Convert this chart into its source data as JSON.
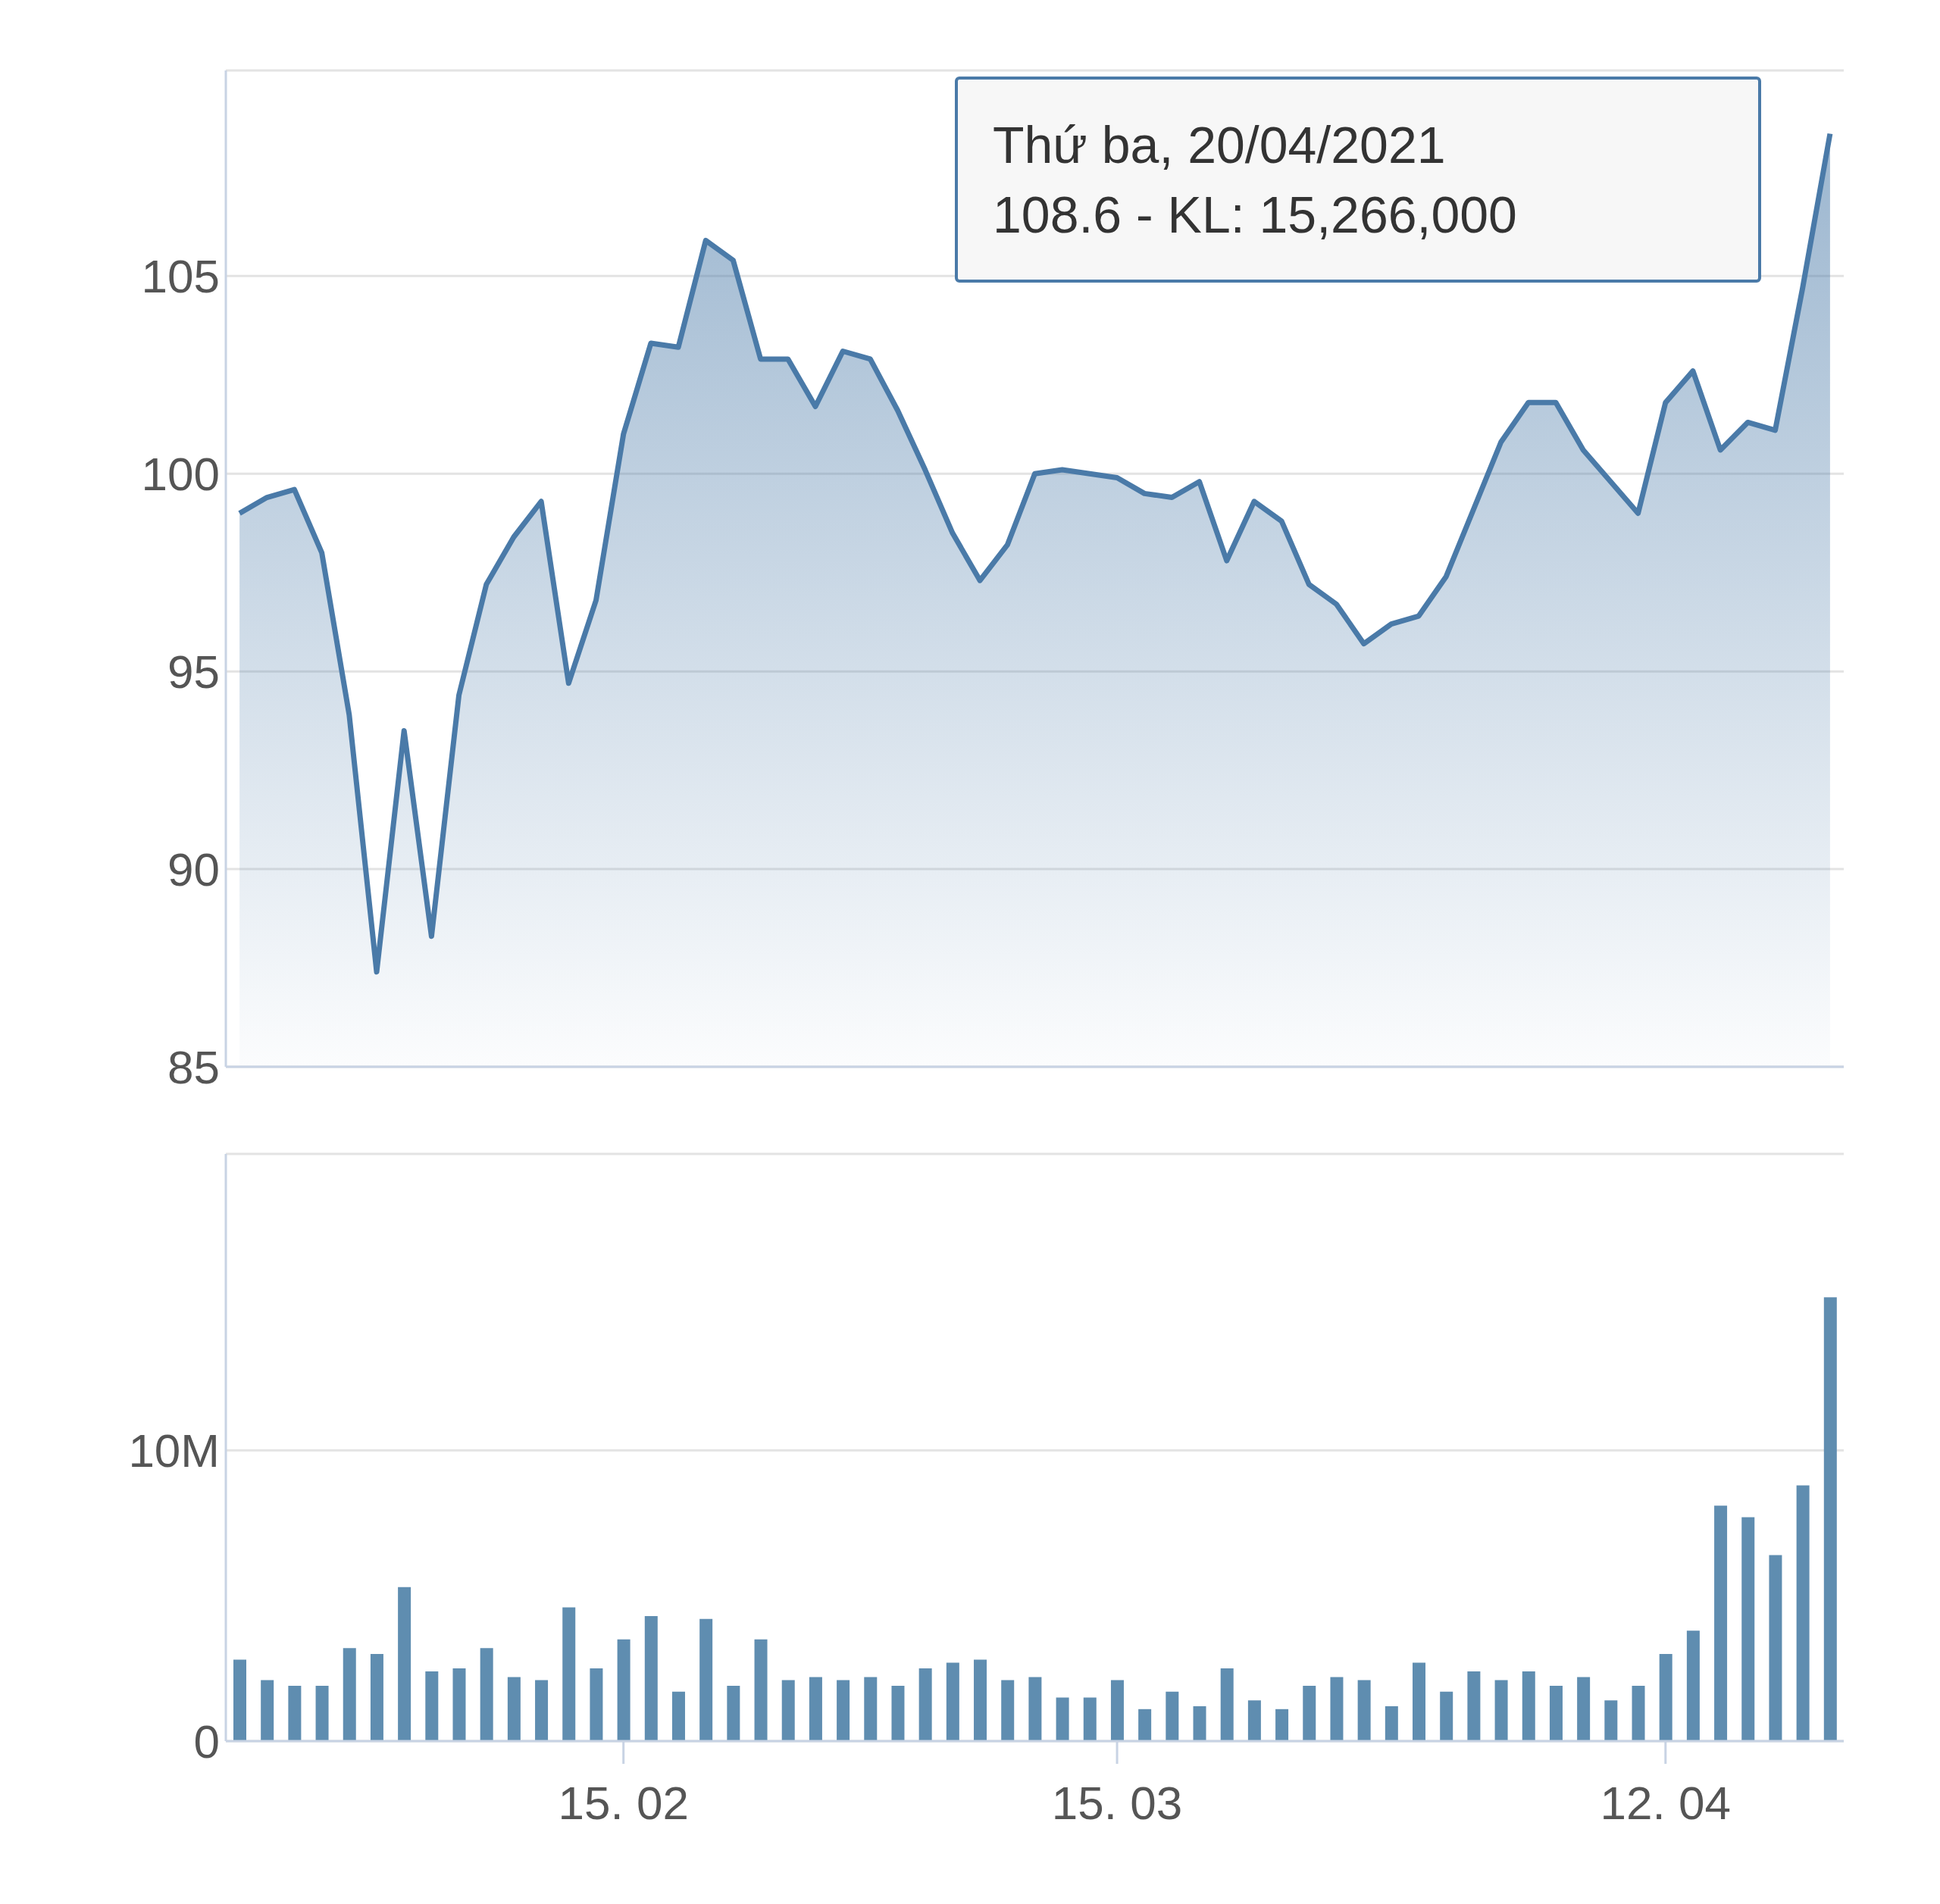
{
  "chart_data": [
    {
      "type": "area",
      "categories": [
        null,
        null,
        null,
        null,
        null,
        null,
        null,
        null,
        null,
        null,
        null,
        null,
        null,
        null,
        null,
        null,
        null,
        null,
        null,
        null,
        null,
        null,
        null,
        null,
        null,
        null,
        null,
        null,
        null,
        null,
        null,
        null,
        null,
        null,
        null,
        null,
        null,
        null,
        null,
        null,
        null,
        null,
        null,
        null,
        null,
        null,
        null,
        null,
        null,
        null,
        null,
        null,
        null,
        null,
        null,
        null,
        null,
        null,
        null
      ],
      "series": [
        {
          "color": "#4a7aa8",
          "values": [
            99.0,
            99.4,
            99.6,
            98.0,
            93.9,
            87.4,
            93.5,
            88.3,
            94.4,
            97.2,
            98.4,
            99.3,
            94.7,
            96.8,
            101.0,
            103.3,
            103.2,
            105.9,
            105.4,
            102.9,
            102.9,
            101.7,
            103.1,
            102.9,
            101.6,
            100.1,
            98.5,
            97.3,
            98.2,
            100.0,
            100.1,
            100.0,
            99.9,
            99.5,
            99.4,
            99.8,
            97.8,
            99.3,
            98.8,
            97.2,
            96.7,
            95.7,
            96.2,
            96.4,
            97.4,
            99.1,
            100.8,
            101.8,
            101.8,
            100.6,
            99.8,
            99.0,
            101.8,
            102.6,
            100.6,
            101.3,
            101.1,
            104.7,
            108.6
          ]
        }
      ],
      "ylim": [
        85,
        110.2
      ],
      "yticks": [
        85,
        90,
        95,
        100,
        105
      ],
      "grid": "y",
      "tick_labels": "y",
      "marker": "none",
      "annotations": [
        "Thứ ba, 20/04/2021",
        "108.6 - KL: 15,266,000"
      ]
    },
    {
      "type": "bar",
      "categories": [
        null,
        null,
        null,
        null,
        null,
        null,
        null,
        null,
        null,
        null,
        null,
        null,
        null,
        null,
        "15. 02",
        null,
        null,
        null,
        null,
        null,
        null,
        null,
        null,
        null,
        null,
        null,
        null,
        null,
        null,
        null,
        null,
        null,
        "15. 03",
        null,
        null,
        null,
        null,
        null,
        null,
        null,
        null,
        null,
        null,
        null,
        null,
        null,
        null,
        null,
        null,
        null,
        null,
        null,
        "12. 04",
        null,
        null,
        null,
        null,
        null,
        null
      ],
      "series": [
        {
          "color": "#5f8db0",
          "values": [
            2800000,
            2100000,
            1900000,
            1900000,
            3200000,
            3000000,
            5300000,
            2400000,
            2500000,
            3200000,
            2200000,
            2100000,
            4600000,
            2500000,
            3500000,
            4300000,
            1700000,
            4200000,
            1900000,
            3500000,
            2100000,
            2200000,
            2100000,
            2200000,
            1900000,
            2500000,
            2700000,
            2800000,
            2100000,
            2200000,
            1500000,
            1500000,
            2100000,
            1100000,
            1700000,
            1200000,
            2500000,
            1400000,
            1100000,
            1900000,
            2200000,
            2100000,
            1200000,
            2700000,
            1700000,
            2400000,
            2100000,
            2400000,
            1900000,
            2200000,
            1400000,
            1900000,
            3000000,
            3800000,
            8100000,
            7700000,
            6400000,
            8800000,
            15266000
          ]
        }
      ],
      "ylim": [
        0,
        20200000
      ],
      "yticks": [
        0,
        {
          "value": 10000000,
          "label": "10M"
        }
      ],
      "grid": "y"
    }
  ]
}
